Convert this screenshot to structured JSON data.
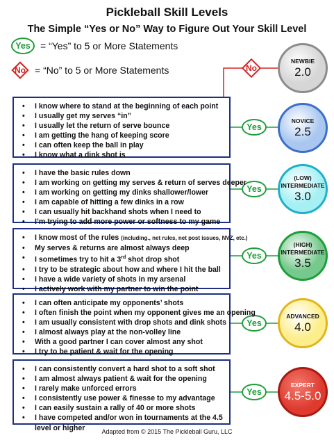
{
  "title": "Pickleball Skill Levels",
  "subtitle": "The Simple “Yes or No” Way to Figure Out Your Skill Level",
  "legend": {
    "yes_label": "Yes",
    "yes_text": "=  “Yes” to 5 or More Statements",
    "no_label": "No",
    "no_text": "=  “No” to 5 or More Statements"
  },
  "colors": {
    "yes": "#1e9e3a",
    "no": "#d52222",
    "box_border": "#1c2f83"
  },
  "levels": [
    {
      "name": "NEWBIE",
      "value": "2.0",
      "fill": "#d6d6d6",
      "border": "#8c8c8c",
      "text_color": "#111111"
    },
    {
      "name": "NOVICE",
      "value": "2.5",
      "fill": "#a9c7f0",
      "border": "#3d6fc6",
      "text_color": "#111111"
    },
    {
      "name": "(LOW) INTERMEDIATE",
      "value": "3.0",
      "fill": "#a6f0f4",
      "border": "#1fb0c7",
      "text_color": "#111111"
    },
    {
      "name": "(HIGH) INTERMEDIATE",
      "value": "3.5",
      "fill": "#76c98c",
      "border": "#1e9e3a",
      "text_color": "#111111"
    },
    {
      "name": "ADVANCED",
      "value": "4.0",
      "fill": "#fdee8c",
      "border": "#e3b51c",
      "text_color": "#111111"
    },
    {
      "name": "EXPERT",
      "value": "4.5-5.0",
      "fill": "#de3a2e",
      "border": "#a81a12",
      "text_color": "#ffffff"
    }
  ],
  "connectors": {
    "no_label": "No",
    "yes_label": "Yes"
  },
  "boxes": [
    {
      "statements": [
        "I know where to stand at the beginning of each point",
        "I usually get my serves “in”",
        "I usually let the return of serve bounce",
        "I am getting the hang of keeping score",
        "I can often keep the ball in play",
        "I know what a dink shot is"
      ]
    },
    {
      "statements": [
        "I have the basic rules down",
        "I am working on getting my serves & return of serves deeper",
        "I am working on getting my dinks shallower/lower",
        "I am capable of hitting a few dinks in a row",
        "I can usually hit backhand shots when I need to",
        "I’m trying to add more power or softness to my game"
      ]
    },
    {
      "statements": [
        "I know most of the rules",
        "My serves & returns are almost always deep",
        "I sometimes try to hit a 3",
        "I try to be strategic about how and where I hit the ball",
        "I have a wide variety of shots in my arsenal",
        "I actively work with my partner to win the point"
      ],
      "statement1_note": "(including., net rules, net post issues, NVZ, etc.)",
      "statement3_sup": "rd",
      "statement3_rest": " shot drop shot"
    },
    {
      "statements": [
        "I can often anticipate my opponents’ shots",
        "I often finish the point when my opponent gives me an opening",
        "I am usually consistent with drop shots and dink shots",
        "I almost always play at the non-volley line",
        "With a good partner I can cover almost any shot",
        "I try to be patient & wait for the opening"
      ]
    },
    {
      "statements": [
        "I can consistently convert a hard shot to a soft shot",
        "I am almost always patient & wait for the opening",
        "I rarely make unforced errors",
        "I consistently use power & finesse to my advantage",
        "I can easily sustain a rally of 40 or more shots",
        "I have competed and/or won in tournaments at the 4.5 level or higher"
      ]
    }
  ],
  "bullet": "•",
  "footer": "Adapted from © 2015 The Pickleball Guru, LLC"
}
